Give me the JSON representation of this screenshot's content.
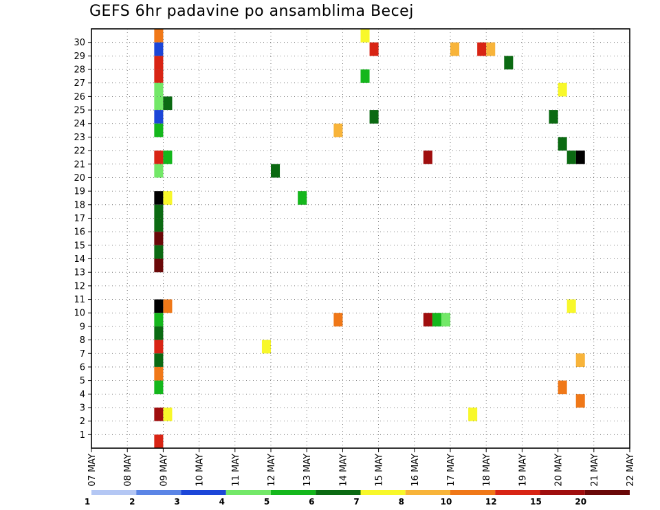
{
  "chart_data": {
    "type": "heatmap",
    "title": "GEFS 6hr padavine po ansamblima Becej",
    "y_ticks": [
      "1",
      "2",
      "3",
      "4",
      "5",
      "6",
      "7",
      "8",
      "9",
      "10",
      "11",
      "12",
      "13",
      "14",
      "15",
      "16",
      "17",
      "18",
      "19",
      "20",
      "21",
      "22",
      "23",
      "24",
      "25",
      "26",
      "27",
      "28",
      "29",
      "30"
    ],
    "x_tick_labels": [
      "07 MAY",
      "08 MAY",
      "09 MAY",
      "10 MAY",
      "11 MAY",
      "12 MAY",
      "13 MAY",
      "14 MAY",
      "15 MAY",
      "16 MAY",
      "17 MAY",
      "18 MAY",
      "19 MAY",
      "20 MAY",
      "21 MAY",
      "22 MAY"
    ],
    "colorbar": {
      "labels": [
        "1",
        "2",
        "3",
        "4",
        "5",
        "6",
        "7",
        "8",
        "10",
        "12",
        "15",
        "20"
      ],
      "colors": [
        "#b4c7f4",
        "#5b85e6",
        "#1c46d8",
        "#73e868",
        "#14b71c",
        "#0b6a12",
        "#f8f82a",
        "#f8b43a",
        "#f07818",
        "#d82414",
        "#a00e0e",
        "#6a0808"
      ]
    },
    "grid": "dotted",
    "cells": [
      {
        "x": "08 MAY 18Z",
        "member": 30,
        "v": 8
      },
      {
        "x": "08 MAY 18Z",
        "member": 29,
        "v": 2
      },
      {
        "x": "08 MAY 18Z",
        "member": 28,
        "v": 9
      },
      {
        "x": "08 MAY 18Z",
        "member": 27,
        "v": 9
      },
      {
        "x": "08 MAY 18Z",
        "member": 26,
        "v": 3
      },
      {
        "x": "08 MAY 18Z",
        "member": 25,
        "v": 3
      },
      {
        "x": "08 MAY 18Z",
        "member": 24,
        "v": 2
      },
      {
        "x": "08 MAY 18Z",
        "member": 23,
        "v": 4
      },
      {
        "x": "08 MAY 18Z",
        "member": 21,
        "v": 9
      },
      {
        "x": "08 MAY 18Z",
        "member": 20,
        "v": 3
      },
      {
        "x": "08 MAY 18Z",
        "member": 18,
        "v": 12
      },
      {
        "x": "08 MAY 18Z",
        "member": 17,
        "v": 5
      },
      {
        "x": "08 MAY 18Z",
        "member": 16,
        "v": 5
      },
      {
        "x": "08 MAY 18Z",
        "member": 15,
        "v": 11
      },
      {
        "x": "08 MAY 18Z",
        "member": 14,
        "v": 5
      },
      {
        "x": "08 MAY 18Z",
        "member": 13,
        "v": 11
      },
      {
        "x": "08 MAY 18Z",
        "member": 10,
        "v": 12
      },
      {
        "x": "08 MAY 18Z",
        "member": 9,
        "v": 4
      },
      {
        "x": "08 MAY 18Z",
        "member": 8,
        "v": 5
      },
      {
        "x": "08 MAY 18Z",
        "member": 7,
        "v": 9
      },
      {
        "x": "08 MAY 18Z",
        "member": 6,
        "v": 5
      },
      {
        "x": "08 MAY 18Z",
        "member": 5,
        "v": 8
      },
      {
        "x": "08 MAY 18Z",
        "member": 4,
        "v": 4
      },
      {
        "x": "08 MAY 18Z",
        "member": 2,
        "v": 10
      },
      {
        "x": "08 MAY 18Z",
        "member": 0,
        "v": 9
      },
      {
        "x": "09 MAY 00Z",
        "member": 25,
        "v": 5
      },
      {
        "x": "09 MAY 00Z",
        "member": 21,
        "v": 4
      },
      {
        "x": "09 MAY 00Z",
        "member": 18,
        "v": 6
      },
      {
        "x": "09 MAY 00Z",
        "member": 10,
        "v": 8
      },
      {
        "x": "09 MAY 00Z",
        "member": 2,
        "v": 6
      },
      {
        "x": "14 MAY 12Z",
        "member": 30,
        "v": 6
      },
      {
        "x": "14 MAY 18Z",
        "member": 29,
        "v": 9
      },
      {
        "x": "14 MAY 12Z",
        "member": 27,
        "v": 4
      },
      {
        "x": "14 MAY 18Z",
        "member": 24,
        "v": 5
      },
      {
        "x": "13 MAY 18Z",
        "member": 23,
        "v": 7
      },
      {
        "x": "12 MAY 00Z",
        "member": 20,
        "v": 5
      },
      {
        "x": "12 MAY 18Z",
        "member": 18,
        "v": 4
      },
      {
        "x": "11 MAY 18Z",
        "member": 7,
        "v": 6
      },
      {
        "x": "13 MAY 18Z",
        "member": 9,
        "v": 8
      },
      {
        "x": "17 MAY 00Z",
        "member": 29,
        "v": 7
      },
      {
        "x": "17 MAY 18Z",
        "member": 29,
        "v": 9
      },
      {
        "x": "18 MAY 00Z",
        "member": 29,
        "v": 7
      },
      {
        "x": "18 MAY 12Z",
        "member": 28,
        "v": 5
      },
      {
        "x": "16 MAY 06Z",
        "member": 21,
        "v": 10
      },
      {
        "x": "16 MAY 06Z",
        "member": 9,
        "v": 10
      },
      {
        "x": "16 MAY 12Z",
        "member": 9,
        "v": 4
      },
      {
        "x": "16 MAY 18Z",
        "member": 9,
        "v": 3
      },
      {
        "x": "20 MAY 00Z",
        "member": 26,
        "v": 6
      },
      {
        "x": "19 MAY 18Z",
        "member": 24,
        "v": 5
      },
      {
        "x": "20 MAY 00Z",
        "member": 22,
        "v": 5
      },
      {
        "x": "20 MAY 12Z",
        "member": 21,
        "v": 12
      },
      {
        "x": "20 MAY 06Z",
        "member": 21,
        "v": 5
      },
      {
        "x": "17 MAY 12Z",
        "member": 2,
        "v": 6
      },
      {
        "x": "20 MAY 06Z",
        "member": 10,
        "v": 6
      },
      {
        "x": "20 MAY 00Z",
        "member": 4,
        "v": 8
      },
      {
        "x": "20 MAY 12Z",
        "member": 3,
        "v": 8
      },
      {
        "x": "20 MAY 12Z",
        "member": 6,
        "v": 7
      }
    ]
  }
}
